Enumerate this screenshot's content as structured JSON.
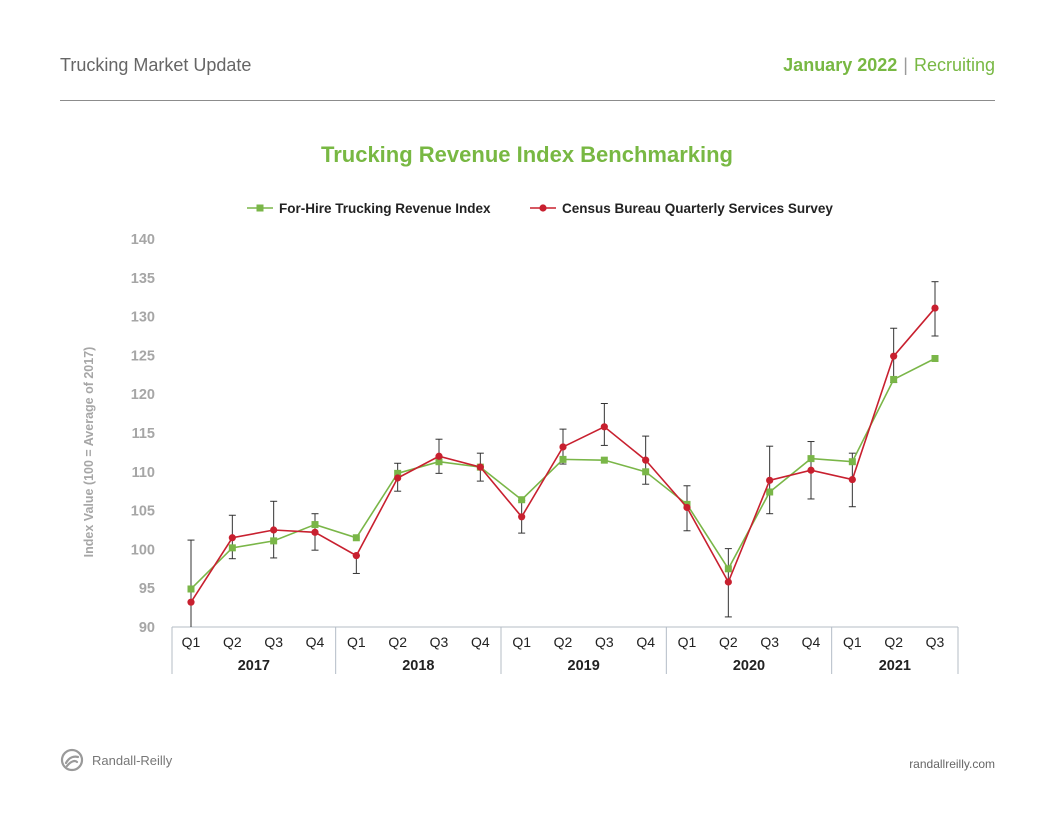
{
  "header": {
    "report_title": "Trucking Market Update",
    "date": "January 2022",
    "separator": "|",
    "section": "Recruiting"
  },
  "colors": {
    "accent": "#78b843",
    "series_green": "#7ab648",
    "series_red": "#c8202f",
    "axis_text": "#a6a6a6",
    "error_bar": "#333333"
  },
  "chart_data": {
    "type": "line",
    "title": "Trucking Revenue Index Benchmarking",
    "xlabel": "",
    "ylabel": "Index Value (100 = Average of 2017)",
    "ylim": [
      90,
      140
    ],
    "yticks": [
      90,
      95,
      100,
      105,
      110,
      115,
      120,
      125,
      130,
      135,
      140
    ],
    "legend_position": "top",
    "categories": [
      "Q1",
      "Q2",
      "Q3",
      "Q4",
      "Q1",
      "Q2",
      "Q3",
      "Q4",
      "Q1",
      "Q2",
      "Q3",
      "Q4",
      "Q1",
      "Q2",
      "Q3",
      "Q4",
      "Q1",
      "Q2",
      "Q3"
    ],
    "groups": [
      {
        "label": "2017",
        "count": 4
      },
      {
        "label": "2018",
        "count": 4
      },
      {
        "label": "2019",
        "count": 4
      },
      {
        "label": "2020",
        "count": 4
      },
      {
        "label": "2021",
        "count": 3
      }
    ],
    "series": [
      {
        "name": "For-Hire Trucking Revenue Index",
        "color": "#7ab648",
        "marker": "square",
        "values": [
          94.9,
          100.2,
          101.1,
          103.2,
          101.5,
          109.8,
          111.3,
          110.6,
          106.4,
          111.6,
          111.5,
          110.0,
          105.8,
          97.5,
          107.4,
          111.7,
          111.3,
          121.9,
          124.6
        ]
      },
      {
        "name": "Census Bureau Quarterly Services Survey",
        "color": "#c8202f",
        "marker": "circle",
        "values": [
          93.2,
          101.5,
          102.5,
          102.2,
          99.2,
          109.2,
          112.0,
          110.6,
          104.2,
          113.2,
          115.8,
          111.5,
          105.4,
          95.8,
          108.9,
          110.2,
          109.0,
          124.9,
          131.1
        ],
        "error_low": [
          89.5,
          98.8,
          98.9,
          99.9,
          96.9,
          107.5,
          109.8,
          108.8,
          102.1,
          111.0,
          113.4,
          108.4,
          102.4,
          91.3,
          104.6,
          106.5,
          105.5,
          121.5,
          127.5
        ],
        "error_high": [
          101.2,
          104.4,
          106.2,
          104.6,
          99.2,
          111.1,
          114.2,
          112.4,
          106.3,
          115.5,
          118.8,
          114.6,
          108.2,
          100.1,
          113.3,
          113.9,
          112.4,
          128.5,
          134.5
        ]
      }
    ]
  },
  "footer": {
    "brand": "Randall-Reilly",
    "url": "randallreilly.com"
  }
}
